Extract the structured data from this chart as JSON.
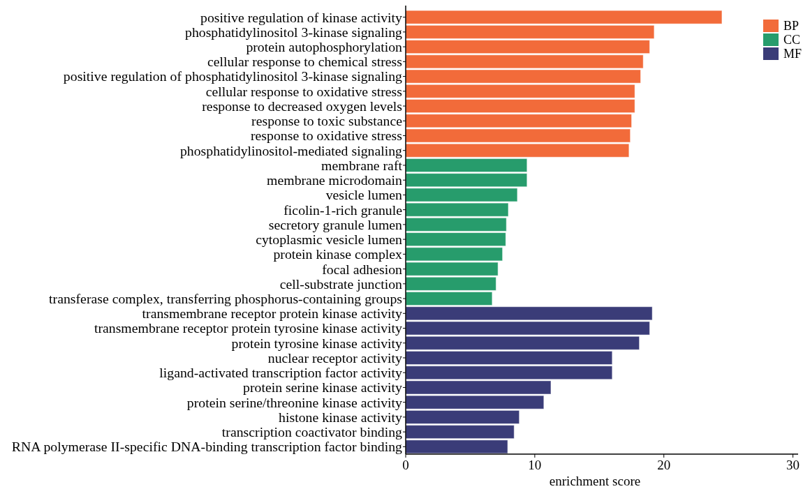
{
  "chart_data": {
    "type": "bar",
    "orientation": "horizontal",
    "xlabel": "enrichment score",
    "xlim": [
      0,
      30.4
    ],
    "xticks": [
      0,
      10,
      20,
      30
    ],
    "legend": "top right",
    "grid": false,
    "categories": [
      "positive regulation of kinase activity",
      "phosphatidylinositol 3-kinase signaling",
      "protein autophosphorylation",
      "cellular response to chemical stress",
      "positive regulation of phosphatidylinositol 3-kinase signaling",
      "cellular response to oxidative stress",
      "response to decreased oxygen levels",
      "response to toxic substance",
      "response to oxidative stress",
      "phosphatidylinositol-mediated signaling",
      "membrane raft",
      "membrane microdomain",
      "vesicle lumen",
      "ficolin-1-rich granule",
      "secretory granule lumen",
      "cytoplasmic vesicle lumen",
      "protein kinase complex",
      "focal adhesion",
      "cell-substrate junction",
      "transferase complex, transferring phosphorus-containing groups",
      "transmembrane receptor protein kinase activity",
      "transmembrane receptor protein tyrosine kinase activity",
      "protein tyrosine kinase activity",
      "nuclear receptor activity",
      "ligand-activated transcription factor activity",
      "protein serine kinase activity",
      "protein serine/threonine kinase activity",
      "histone kinase activity",
      "transcription coactivator binding",
      "RNA polymerase II-specific DNA-binding transcription factor binding"
    ],
    "series": [
      {
        "name": "BP",
        "color": "#f26b3a",
        "values": [
          24.5,
          19.25,
          18.9,
          18.4,
          18.2,
          17.75,
          17.75,
          17.5,
          17.4,
          17.3,
          null,
          null,
          null,
          null,
          null,
          null,
          null,
          null,
          null,
          null,
          null,
          null,
          null,
          null,
          null,
          null,
          null,
          null,
          null,
          null
        ]
      },
      {
        "name": "CC",
        "color": "#279c6c",
        "values": [
          null,
          null,
          null,
          null,
          null,
          null,
          null,
          null,
          null,
          null,
          9.4,
          9.4,
          8.65,
          7.95,
          7.8,
          7.75,
          7.5,
          7.15,
          7.0,
          6.7,
          null,
          null,
          null,
          null,
          null,
          null,
          null,
          null,
          null,
          null
        ]
      },
      {
        "name": "MF",
        "color": "#3a3c78",
        "values": [
          null,
          null,
          null,
          null,
          null,
          null,
          null,
          null,
          null,
          null,
          null,
          null,
          null,
          null,
          null,
          null,
          null,
          null,
          null,
          null,
          19.1,
          18.9,
          18.1,
          16.0,
          16.0,
          11.25,
          10.7,
          8.8,
          8.4,
          7.9
        ]
      }
    ]
  }
}
